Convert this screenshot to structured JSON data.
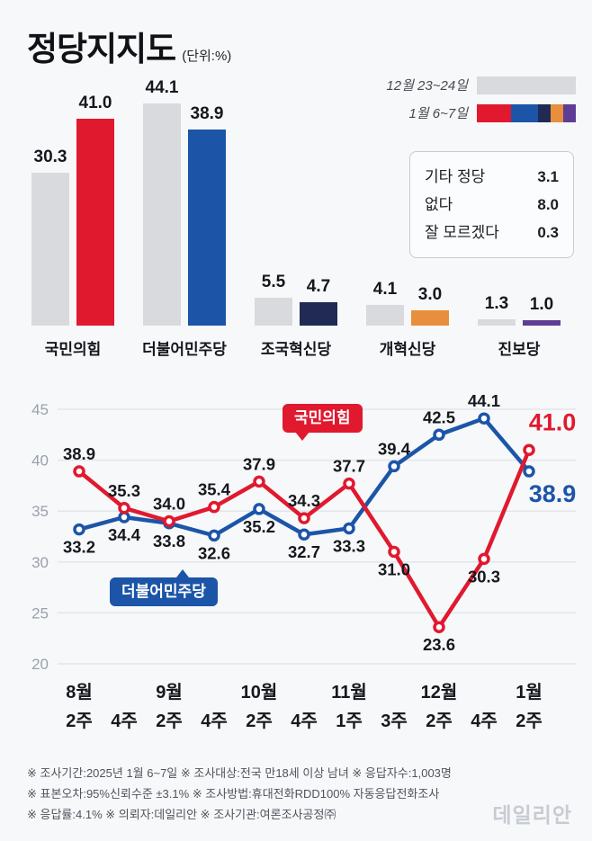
{
  "page": {
    "background": "#f7f8fa"
  },
  "header": {
    "title": "정당지지도",
    "unit": "(단위:%)"
  },
  "legend": {
    "prev": {
      "label": "12월 23~24일",
      "color": "#d8dade"
    },
    "curr": {
      "label": "1월 6~7일",
      "colors": [
        "#e0192f",
        "#1c55a8",
        "#202a54",
        "#e78f3c",
        "#5f3d96"
      ]
    }
  },
  "others_box": {
    "items": [
      {
        "label": "기타 정당",
        "value": "3.1"
      },
      {
        "label": "없다",
        "value": "8.0"
      },
      {
        "label": "잘 모르겠다",
        "value": "0.3"
      }
    ]
  },
  "chart_data": [
    {
      "type": "bar",
      "title": "정당지지도",
      "unit": "%",
      "categories": [
        "국민의힘",
        "더불어민주당",
        "조국혁신당",
        "개혁신당",
        "진보당"
      ],
      "series": [
        {
          "name": "12월 23~24일",
          "color": "#d8dade",
          "values": [
            30.3,
            44.1,
            5.5,
            4.1,
            1.3
          ]
        },
        {
          "name": "1월 6~7일",
          "colors": [
            "#e0192f",
            "#1c55a8",
            "#202a54",
            "#e78f3c",
            "#5f3d96"
          ],
          "values": [
            41.0,
            38.9,
            4.7,
            3.0,
            1.0
          ]
        }
      ]
    },
    {
      "type": "line",
      "ylim": [
        20,
        45
      ],
      "yticks": [
        20,
        25,
        30,
        35,
        40,
        45
      ],
      "grid": true,
      "legend_position": "on-chart-badges",
      "x_labels_month": [
        "8월",
        "",
        "9월",
        "",
        "10월",
        "",
        "11월",
        "",
        "12월",
        "",
        "1월"
      ],
      "x_labels_week": [
        "2주",
        "4주",
        "2주",
        "4주",
        "2주",
        "4주",
        "1주",
        "3주",
        "2주",
        "4주",
        "2주"
      ],
      "series": [
        {
          "name": "국민의힘",
          "color": "#e0192f",
          "values": [
            38.9,
            35.3,
            34.0,
            35.4,
            37.9,
            34.3,
            37.7,
            31.0,
            23.6,
            30.3,
            41.0
          ],
          "label_side": [
            "above",
            "above",
            "above",
            "above",
            "above",
            "above",
            "above",
            "below",
            "below",
            "below",
            "above"
          ]
        },
        {
          "name": "더불어민주당",
          "color": "#1c55a8",
          "values": [
            33.2,
            34.4,
            33.8,
            32.6,
            35.2,
            32.7,
            33.3,
            39.4,
            42.5,
            44.1,
            38.9
          ],
          "label_side": [
            "below",
            "below",
            "below",
            "below",
            "below",
            "below",
            "below",
            "above",
            "above",
            "above",
            "below"
          ]
        }
      ]
    }
  ],
  "footer": {
    "lines": [
      "※ 조사기간:2025년 1월 6~7일 ※ 조사대상:전국 만18세 이상 남녀 ※ 응답자수:1,003명",
      "※ 표본오차:95%신뢰수준 ±3.1% ※ 조사방법:휴대전화RDD100% 자동응답전화조사",
      "※ 응답률:4.1% ※ 의뢰자:데일리안 ※ 조사기관:여론조사공정㈜"
    ]
  },
  "watermark": "데일리안"
}
